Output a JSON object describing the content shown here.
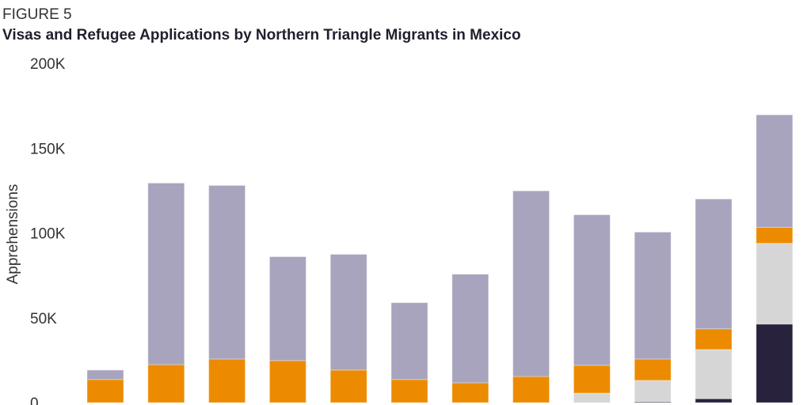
{
  "figure_label": "FIGURE 5",
  "chart_data": {
    "type": "bar",
    "stacked": true,
    "title": "Visas and Refugee Applications by Northern Triangle Migrants in Mexico",
    "xlabel": "",
    "ylabel": "Apprehensions",
    "ylim": [
      0,
      200000
    ],
    "yticks": [
      0,
      50000,
      100000,
      150000,
      200000
    ],
    "ytick_labels": [
      "0",
      "50K",
      "100K",
      "150K",
      "200K"
    ],
    "grid": false,
    "series": [
      {
        "color": "#28223d",
        "values": [
          0,
          0,
          0,
          0,
          0,
          0,
          0,
          0,
          0,
          500,
          2300,
          46300
        ]
      },
      {
        "color": "#d6d6d6",
        "values": [
          0,
          0,
          0,
          0,
          0,
          0,
          0,
          0,
          5600,
          12600,
          29000,
          47600
        ]
      },
      {
        "color": "#ec8b00",
        "values": [
          13600,
          22400,
          25700,
          24800,
          19200,
          13600,
          11700,
          15400,
          16400,
          12600,
          12200,
          9400
        ]
      },
      {
        "color": "#a8a4bd",
        "values": [
          5600,
          107000,
          102300,
          61200,
          68200,
          45300,
          64000,
          109400,
          88700,
          74800,
          76500,
          66300
        ]
      }
    ]
  }
}
